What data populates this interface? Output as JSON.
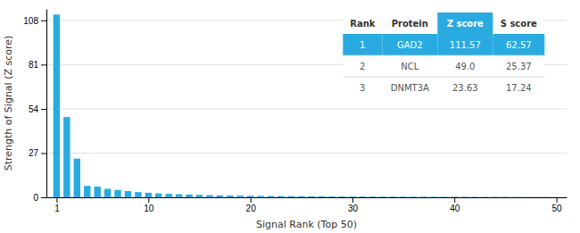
{
  "chart_data": {
    "type": "bar",
    "xlabel": "Signal Rank (Top 50)",
    "ylabel": "Strength of Signal (Z score)",
    "x": [
      1,
      2,
      3,
      4,
      5,
      6,
      7,
      8,
      9,
      10,
      11,
      12,
      13,
      14,
      15,
      16,
      17,
      18,
      19,
      20,
      21,
      22,
      23,
      24,
      25,
      26,
      27,
      28,
      29,
      30,
      31,
      32,
      33,
      34,
      35,
      36,
      37,
      38,
      39,
      40,
      41,
      42,
      43,
      44,
      45,
      46,
      47,
      48,
      49,
      50
    ],
    "values": [
      111.57,
      49.0,
      23.63,
      7.0,
      6.5,
      5.2,
      4.5,
      3.8,
      3.2,
      2.8,
      2.4,
      2.1,
      1.9,
      1.7,
      1.5,
      1.3,
      1.2,
      1.1,
      1.0,
      0.9,
      0.85,
      0.8,
      0.75,
      0.7,
      0.65,
      0.6,
      0.55,
      0.5,
      0.48,
      0.46,
      0.44,
      0.42,
      0.4,
      0.38,
      0.36,
      0.34,
      0.32,
      0.3,
      0.28,
      0.26,
      0.24,
      0.22,
      0.2,
      0.18,
      0.16,
      0.14,
      0.12,
      0.1,
      0.08,
      0.06
    ],
    "color": "#29ABE2",
    "xlim": [
      0,
      51
    ],
    "xticks": [
      1,
      10,
      20,
      30,
      40,
      50
    ],
    "ylim": [
      0,
      115
    ],
    "yticks": [
      0,
      27,
      54,
      81,
      108
    ],
    "grid": true,
    "table": {
      "headers": [
        "Rank",
        "Protein",
        "Z score",
        "S score"
      ],
      "rows": [
        [
          "1",
          "GAD2",
          "111.57",
          "62.57"
        ],
        [
          "2",
          "NCL",
          "49.0",
          "25.37"
        ],
        [
          "3",
          "DNMT3A",
          "23.63",
          "17.24"
        ]
      ],
      "highlight_color": "#29ABE2"
    }
  }
}
